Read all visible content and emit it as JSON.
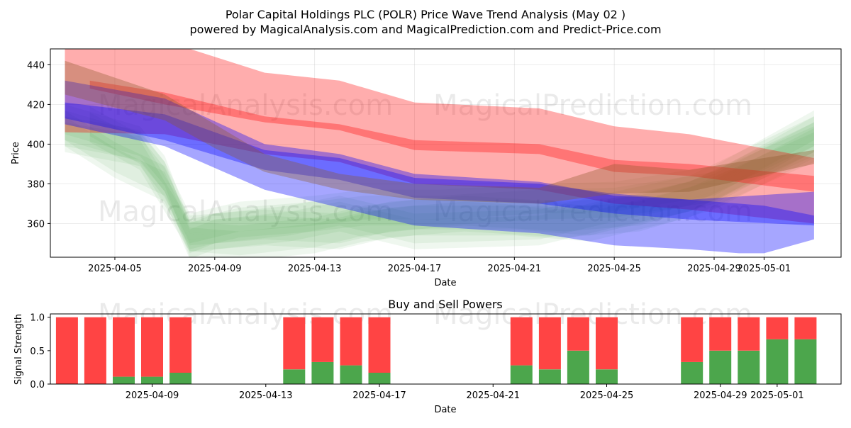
{
  "title_line1": "Polar Capital Holdings PLC (POLR) Price Wave Trend Analysis (May 02 )",
  "title_line2": "powered by MagicalAnalysis.com and MagicalPrediction.com and Predict-Price.com",
  "watermarks": [
    "MagicalAnalysis.com",
    "MagicalPrediction.com"
  ],
  "colors": {
    "red_band": "#ff0000",
    "blue_band": "#0000ff",
    "green_band": "#2e9a2e",
    "buy_bar": "#4ca64c",
    "sell_bar": "#ff4444"
  },
  "chart_data": [
    {
      "type": "area",
      "title": "",
      "xlabel": "Date",
      "ylabel": "Price",
      "xlim": [
        "2025-04-02 10:00",
        "2025-05-04 02:00"
      ],
      "ylim": [
        343,
        448
      ],
      "x_ticks": [
        "2025-04-05",
        "2025-04-09",
        "2025-04-13",
        "2025-04-17",
        "2025-04-21",
        "2025-04-25",
        "2025-04-29",
        "2025-05-01"
      ],
      "y_ticks": [
        360,
        380,
        400,
        420,
        440
      ],
      "grid": true,
      "bands": [
        {
          "name": "red-outer",
          "color": "red",
          "dates": [
            "2025-04-03",
            "2025-04-07",
            "2025-04-11",
            "2025-04-14",
            "2025-04-17",
            "2025-04-22",
            "2025-04-25",
            "2025-04-28",
            "2025-05-03"
          ],
          "upper": [
            453,
            452,
            436,
            432,
            421,
            418,
            409,
            405,
            393
          ],
          "lower": [
            406,
            405,
            395,
            391,
            380,
            377,
            370,
            367,
            360
          ]
        },
        {
          "name": "red-inner",
          "color": "red",
          "dates": [
            "2025-04-04",
            "2025-04-07",
            "2025-04-11",
            "2025-04-14",
            "2025-04-17",
            "2025-04-22",
            "2025-04-25",
            "2025-04-28",
            "2025-05-03"
          ],
          "upper": [
            432,
            426,
            414,
            410,
            402,
            400,
            392,
            390,
            384
          ],
          "lower": [
            428,
            420,
            411,
            407,
            397,
            395,
            386,
            384,
            376
          ]
        },
        {
          "name": "blue-outer",
          "color": "blue",
          "dates": [
            "2025-04-03",
            "2025-04-07",
            "2025-04-11",
            "2025-04-14",
            "2025-04-17",
            "2025-04-22",
            "2025-04-25",
            "2025-04-28",
            "2025-04-30",
            "2025-05-01",
            "2025-05-03"
          ],
          "upper": [
            421,
            415,
            397,
            393,
            383,
            380,
            375,
            372,
            370,
            369,
            364
          ],
          "lower": [
            410,
            399,
            377,
            368,
            359,
            355,
            349,
            347,
            345,
            345,
            352
          ]
        },
        {
          "name": "blue-inner",
          "color": "blue",
          "dates": [
            "2025-04-03",
            "2025-04-07",
            "2025-04-11",
            "2025-04-14",
            "2025-04-17",
            "2025-04-22",
            "2025-04-25",
            "2025-04-28",
            "2025-05-03"
          ],
          "upper": [
            432,
            423,
            400,
            395,
            385,
            381,
            374,
            372,
            376
          ],
          "lower": [
            413,
            402,
            387,
            382,
            373,
            370,
            365,
            362,
            359
          ]
        },
        {
          "name": "brown-overlay",
          "color": "brown",
          "dates": [
            "2025-04-03",
            "2025-04-07",
            "2025-04-09",
            "2025-04-11",
            "2025-04-14",
            "2025-04-17",
            "2025-04-22",
            "2025-04-25",
            "2025-04-28",
            "2025-05-03"
          ],
          "upper": [
            442,
            425,
            410,
            395,
            385,
            380,
            378,
            390,
            387,
            397
          ],
          "lower": [
            425,
            412,
            398,
            386,
            377,
            372,
            370,
            375,
            376,
            390
          ]
        }
      ],
      "green_waves": [
        {
          "dates": [
            "2025-04-03",
            "2025-04-05",
            "2025-04-07",
            "2025-04-08",
            "2025-04-09",
            "2025-04-12",
            "2025-04-14",
            "2025-04-17",
            "2025-04-22",
            "2025-04-25",
            "2025-04-28",
            "2025-05-03"
          ],
          "values": [
            408,
            392,
            380,
            351,
            356,
            360,
            365,
            356,
            358,
            367,
            375,
            405
          ]
        },
        {
          "dates": [
            "2025-04-03",
            "2025-04-06",
            "2025-04-07",
            "2025-04-08",
            "2025-04-10",
            "2025-04-13",
            "2025-04-15",
            "2025-04-17",
            "2025-04-21",
            "2025-04-24",
            "2025-04-28",
            "2025-05-03"
          ],
          "values": [
            411,
            400,
            385,
            352,
            350,
            354,
            360,
            363,
            363,
            360,
            372,
            400
          ]
        },
        {
          "dates": [
            "2025-04-03",
            "2025-04-06",
            "2025-04-07",
            "2025-04-08",
            "2025-04-10",
            "2025-04-13",
            "2025-04-15",
            "2025-04-18",
            "2025-04-22",
            "2025-04-25",
            "2025-04-29",
            "2025-05-03"
          ],
          "values": [
            405,
            398,
            382,
            356,
            362,
            365,
            368,
            368,
            371,
            372,
            380,
            408
          ]
        },
        {
          "dates": [
            "2025-04-04",
            "2025-04-06",
            "2025-04-07",
            "2025-04-08",
            "2025-04-11",
            "2025-04-14",
            "2025-04-16",
            "2025-04-19",
            "2025-04-23",
            "2025-04-26",
            "2025-04-29",
            "2025-05-03"
          ],
          "values": [
            410,
            396,
            375,
            355,
            358,
            356,
            362,
            365,
            362,
            365,
            376,
            402
          ]
        }
      ]
    },
    {
      "type": "bar",
      "title": "Buy and Sell Powers",
      "xlabel": "Date",
      "ylabel": "Signal Strength",
      "ylim": [
        0,
        1.05
      ],
      "y_ticks": [
        "0.0",
        "0.5",
        "1.0"
      ],
      "x_ticks": [
        "2025-04-09",
        "2025-04-13",
        "2025-04-17",
        "2025-04-21",
        "2025-04-25",
        "2025-04-29",
        "2025-05-01"
      ],
      "xlim": [
        "2025-04-05 10:00",
        "2025-05-03 06:00"
      ],
      "dates": [
        "2025-04-06",
        "2025-04-07",
        "2025-04-08",
        "2025-04-09",
        "2025-04-10",
        "2025-04-14",
        "2025-04-15",
        "2025-04-16",
        "2025-04-17",
        "2025-04-22",
        "2025-04-23",
        "2025-04-24",
        "2025-04-25",
        "2025-04-28",
        "2025-04-29",
        "2025-04-30",
        "2025-05-01",
        "2025-05-02"
      ],
      "buy": [
        0.0,
        0.0,
        0.11,
        0.11,
        0.17,
        0.22,
        0.33,
        0.28,
        0.17,
        0.28,
        0.22,
        0.5,
        0.22,
        0.33,
        0.5,
        0.5,
        0.67,
        0.67
      ],
      "sell": [
        1.0,
        1.0,
        0.89,
        0.89,
        0.83,
        0.78,
        0.67,
        0.72,
        0.83,
        0.72,
        0.78,
        0.5,
        0.78,
        0.67,
        0.5,
        0.5,
        0.33,
        0.33
      ]
    }
  ]
}
